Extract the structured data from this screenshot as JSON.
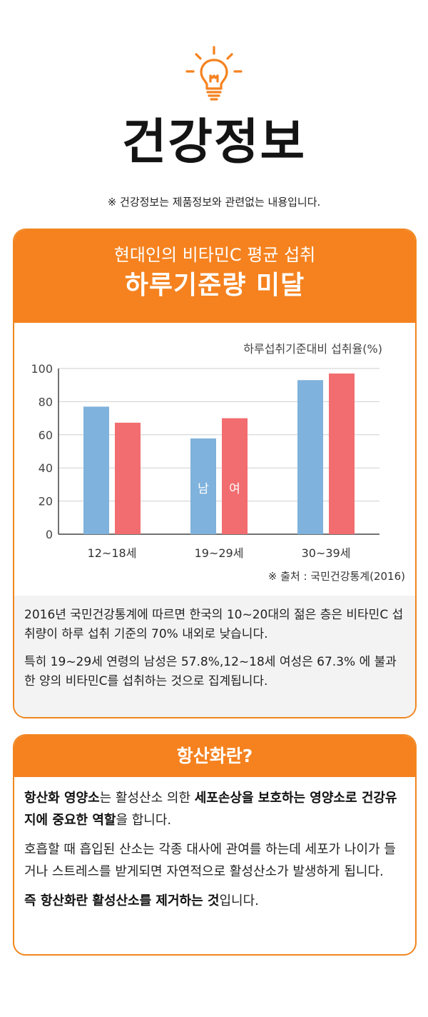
{
  "header": {
    "title": "건강정보",
    "disclaimer": "※ 건강정보는 제품정보와 관련없는 내용입니다."
  },
  "card1": {
    "subtitle": "현대인의 비타민C 평균 섭취",
    "headline": "하루기준량 미달",
    "source": "※ 출처 : 국민건강통계(2016)",
    "paragraph1": "2016년 국민건강통계에 따르면 한국의 10~20대의 젊은 층은 비타민C 섭취량이 하루 섭취 기준의 70% 내외로 낮습니다.",
    "paragraph2": "특히 19~29세 연령의 남성은 57.8%,12~18세 여성은 67.3% 에 불과한 양의 비타민C를 섭취하는 것으로 집계됩니다."
  },
  "chart_data": {
    "type": "bar",
    "title": "",
    "ylabel": "하루섭취기준대비 섭취율(%)",
    "xlabel": "",
    "categories": [
      "12~18세",
      "19~29세",
      "30~39세"
    ],
    "series": [
      {
        "name": "남",
        "values": [
          77,
          57.8,
          93
        ],
        "color": "#7fb2dc"
      },
      {
        "name": "여",
        "values": [
          67.3,
          70,
          97
        ],
        "color": "#f26d6f"
      }
    ],
    "ylim": [
      0,
      100
    ],
    "yticks": [
      "0",
      "20",
      "40",
      "60",
      "80",
      "100"
    ],
    "grid": true,
    "legend": "labels inside middle bars"
  },
  "card2": {
    "title": "항산화란?",
    "p1_part1": "항산화 영양소",
    "p1_part2": "는 활성산소 의한 ",
    "p1_part3": "세포손상을 보호하는 영양소로 건강유지에 중요한 역할",
    "p1_part4": "을 합니다.",
    "p2": "호흡할 때 흡입된 산소는 각종 대사에 관여를 하는데 세포가 나이가 들거나 스트레스를 받게되면 자연적으로 활성산소가 발생하게 됩니다.",
    "p3_part1": "즉 항산화란 활성산소를 제거하는 것",
    "p3_part2": "입니다."
  },
  "colors": {
    "accent_orange": "#f5821f",
    "male_blue": "#7fb2dc",
    "female_red": "#f26d6f"
  }
}
